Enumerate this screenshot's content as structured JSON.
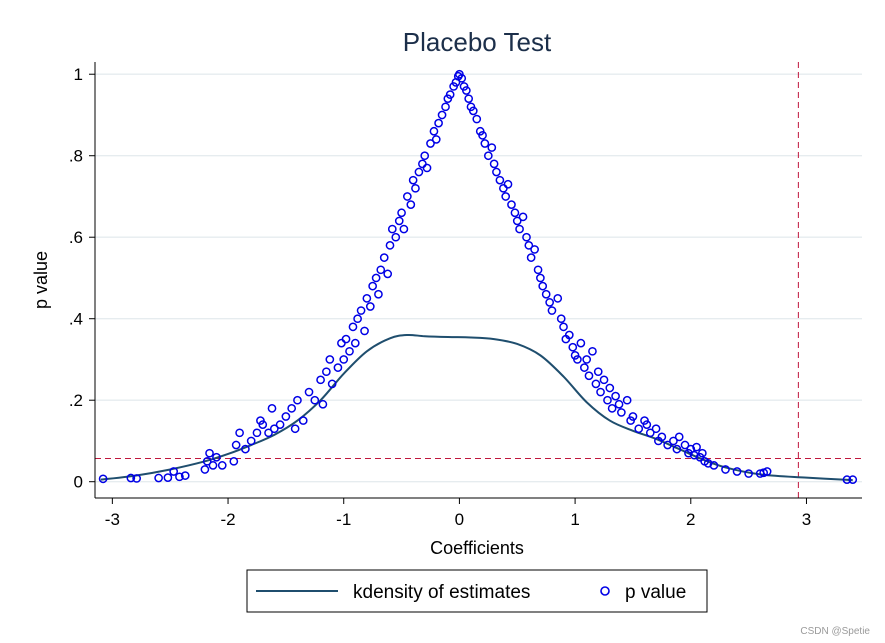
{
  "chart_data": {
    "type": "scatter",
    "title": "Placebo Test",
    "xlabel": "Coefficients",
    "ylabel": "p value",
    "xlim": [
      -3.15,
      3.48
    ],
    "ylim": [
      -0.04,
      1.03
    ],
    "x_ticks": [
      {
        "value": -3,
        "label": "-3"
      },
      {
        "value": -2,
        "label": "-2"
      },
      {
        "value": -1,
        "label": "-1"
      },
      {
        "value": 0,
        "label": "0"
      },
      {
        "value": 1,
        "label": "1"
      },
      {
        "value": 2,
        "label": "2"
      },
      {
        "value": 3,
        "label": "3"
      }
    ],
    "y_ticks": [
      {
        "value": 0,
        "label": "0"
      },
      {
        "value": 0.2,
        "label": ".2"
      },
      {
        "value": 0.4,
        "label": ".4"
      },
      {
        "value": 0.6,
        "label": ".6"
      },
      {
        "value": 0.8,
        "label": ".8"
      },
      {
        "value": 1,
        "label": "1"
      }
    ],
    "grid": true,
    "reference_lines": {
      "vertical_x": 2.93,
      "horizontal_y": 0.057,
      "color": "#c0163d"
    },
    "series": [
      {
        "name": "kdensity of estimates",
        "type": "line",
        "color": "#1f4e6e",
        "x": [
          -3.1,
          -2.8,
          -2.5,
          -2.2,
          -2.0,
          -1.8,
          -1.6,
          -1.4,
          -1.2,
          -1.0,
          -0.8,
          -0.6,
          -0.45,
          -0.3,
          -0.1,
          0.1,
          0.3,
          0.5,
          0.7,
          0.9,
          1.1,
          1.3,
          1.5,
          1.7,
          1.9,
          2.1,
          2.3,
          2.6,
          3.0,
          3.4
        ],
        "y": [
          0.005,
          0.015,
          0.03,
          0.05,
          0.068,
          0.09,
          0.115,
          0.15,
          0.2,
          0.265,
          0.32,
          0.352,
          0.36,
          0.357,
          0.355,
          0.354,
          0.35,
          0.338,
          0.31,
          0.258,
          0.195,
          0.15,
          0.125,
          0.105,
          0.08,
          0.055,
          0.035,
          0.018,
          0.01,
          0.004
        ]
      },
      {
        "name": "p value",
        "type": "scatter",
        "marker": "hollow-circle",
        "color": "#0000e6",
        "points": [
          [
            -3.08,
            0.007
          ],
          [
            -2.84,
            0.009
          ],
          [
            -2.79,
            0.008
          ],
          [
            -2.6,
            0.009
          ],
          [
            -2.52,
            0.01
          ],
          [
            -2.47,
            0.025
          ],
          [
            -2.42,
            0.012
          ],
          [
            -2.37,
            0.015
          ],
          [
            -2.2,
            0.03
          ],
          [
            -2.18,
            0.05
          ],
          [
            -2.16,
            0.07
          ],
          [
            -2.13,
            0.04
          ],
          [
            -2.1,
            0.06
          ],
          [
            -2.05,
            0.04
          ],
          [
            -1.95,
            0.05
          ],
          [
            -1.93,
            0.09
          ],
          [
            -1.9,
            0.12
          ],
          [
            -1.85,
            0.08
          ],
          [
            -1.8,
            0.1
          ],
          [
            -1.75,
            0.12
          ],
          [
            -1.72,
            0.15
          ],
          [
            -1.7,
            0.14
          ],
          [
            -1.65,
            0.12
          ],
          [
            -1.62,
            0.18
          ],
          [
            -1.6,
            0.13
          ],
          [
            -1.55,
            0.14
          ],
          [
            -1.5,
            0.16
          ],
          [
            -1.45,
            0.18
          ],
          [
            -1.42,
            0.13
          ],
          [
            -1.4,
            0.2
          ],
          [
            -1.35,
            0.15
          ],
          [
            -1.3,
            0.22
          ],
          [
            -1.25,
            0.2
          ],
          [
            -1.2,
            0.25
          ],
          [
            -1.18,
            0.19
          ],
          [
            -1.15,
            0.27
          ],
          [
            -1.12,
            0.3
          ],
          [
            -1.1,
            0.24
          ],
          [
            -1.05,
            0.28
          ],
          [
            -1.02,
            0.34
          ],
          [
            -1.0,
            0.3
          ],
          [
            -0.98,
            0.35
          ],
          [
            -0.95,
            0.32
          ],
          [
            -0.92,
            0.38
          ],
          [
            -0.9,
            0.34
          ],
          [
            -0.88,
            0.4
          ],
          [
            -0.85,
            0.42
          ],
          [
            -0.82,
            0.37
          ],
          [
            -0.8,
            0.45
          ],
          [
            -0.77,
            0.43
          ],
          [
            -0.75,
            0.48
          ],
          [
            -0.72,
            0.5
          ],
          [
            -0.7,
            0.46
          ],
          [
            -0.68,
            0.52
          ],
          [
            -0.65,
            0.55
          ],
          [
            -0.62,
            0.51
          ],
          [
            -0.6,
            0.58
          ],
          [
            -0.58,
            0.62
          ],
          [
            -0.55,
            0.6
          ],
          [
            -0.52,
            0.64
          ],
          [
            -0.5,
            0.66
          ],
          [
            -0.48,
            0.62
          ],
          [
            -0.45,
            0.7
          ],
          [
            -0.42,
            0.68
          ],
          [
            -0.4,
            0.74
          ],
          [
            -0.38,
            0.72
          ],
          [
            -0.35,
            0.76
          ],
          [
            -0.32,
            0.78
          ],
          [
            -0.3,
            0.8
          ],
          [
            -0.28,
            0.77
          ],
          [
            -0.25,
            0.83
          ],
          [
            -0.22,
            0.86
          ],
          [
            -0.2,
            0.84
          ],
          [
            -0.18,
            0.88
          ],
          [
            -0.15,
            0.9
          ],
          [
            -0.12,
            0.92
          ],
          [
            -0.1,
            0.94
          ],
          [
            -0.08,
            0.95
          ],
          [
            -0.05,
            0.97
          ],
          [
            -0.03,
            0.98
          ],
          [
            -0.01,
            0.995
          ],
          [
            0.0,
            1.0
          ],
          [
            0.02,
            0.99
          ],
          [
            0.04,
            0.97
          ],
          [
            0.06,
            0.96
          ],
          [
            0.08,
            0.94
          ],
          [
            0.1,
            0.92
          ],
          [
            0.12,
            0.91
          ],
          [
            0.15,
            0.89
          ],
          [
            0.18,
            0.86
          ],
          [
            0.2,
            0.85
          ],
          [
            0.22,
            0.83
          ],
          [
            0.25,
            0.8
          ],
          [
            0.28,
            0.82
          ],
          [
            0.3,
            0.78
          ],
          [
            0.32,
            0.76
          ],
          [
            0.35,
            0.74
          ],
          [
            0.38,
            0.72
          ],
          [
            0.4,
            0.7
          ],
          [
            0.42,
            0.73
          ],
          [
            0.45,
            0.68
          ],
          [
            0.48,
            0.66
          ],
          [
            0.5,
            0.64
          ],
          [
            0.52,
            0.62
          ],
          [
            0.55,
            0.65
          ],
          [
            0.58,
            0.6
          ],
          [
            0.6,
            0.58
          ],
          [
            0.62,
            0.55
          ],
          [
            0.65,
            0.57
          ],
          [
            0.68,
            0.52
          ],
          [
            0.7,
            0.5
          ],
          [
            0.72,
            0.48
          ],
          [
            0.75,
            0.46
          ],
          [
            0.78,
            0.44
          ],
          [
            0.8,
            0.42
          ],
          [
            0.85,
            0.45
          ],
          [
            0.88,
            0.4
          ],
          [
            0.9,
            0.38
          ],
          [
            0.92,
            0.35
          ],
          [
            0.95,
            0.36
          ],
          [
            0.98,
            0.33
          ],
          [
            1.0,
            0.31
          ],
          [
            1.02,
            0.3
          ],
          [
            1.05,
            0.34
          ],
          [
            1.08,
            0.28
          ],
          [
            1.1,
            0.3
          ],
          [
            1.12,
            0.26
          ],
          [
            1.15,
            0.32
          ],
          [
            1.18,
            0.24
          ],
          [
            1.2,
            0.27
          ],
          [
            1.22,
            0.22
          ],
          [
            1.25,
            0.25
          ],
          [
            1.28,
            0.2
          ],
          [
            1.3,
            0.23
          ],
          [
            1.32,
            0.18
          ],
          [
            1.35,
            0.21
          ],
          [
            1.38,
            0.19
          ],
          [
            1.4,
            0.17
          ],
          [
            1.45,
            0.2
          ],
          [
            1.48,
            0.15
          ],
          [
            1.5,
            0.16
          ],
          [
            1.55,
            0.13
          ],
          [
            1.6,
            0.15
          ],
          [
            1.62,
            0.14
          ],
          [
            1.65,
            0.12
          ],
          [
            1.7,
            0.13
          ],
          [
            1.72,
            0.1
          ],
          [
            1.75,
            0.11
          ],
          [
            1.8,
            0.09
          ],
          [
            1.85,
            0.1
          ],
          [
            1.88,
            0.08
          ],
          [
            1.9,
            0.11
          ],
          [
            1.95,
            0.09
          ],
          [
            1.98,
            0.07
          ],
          [
            2.0,
            0.08
          ],
          [
            2.03,
            0.065
          ],
          [
            2.05,
            0.085
          ],
          [
            2.08,
            0.06
          ],
          [
            2.1,
            0.07
          ],
          [
            2.12,
            0.05
          ],
          [
            2.15,
            0.045
          ],
          [
            2.2,
            0.04
          ],
          [
            2.3,
            0.03
          ],
          [
            2.4,
            0.025
          ],
          [
            2.5,
            0.02
          ],
          [
            2.6,
            0.02
          ],
          [
            2.63,
            0.022
          ],
          [
            2.66,
            0.025
          ],
          [
            3.35,
            0.005
          ],
          [
            3.4,
            0.005
          ]
        ]
      }
    ],
    "legend": {
      "position": "bottom",
      "entries": [
        "kdensity of estimates",
        "p value"
      ]
    }
  },
  "watermark": "CSDN @Spetie"
}
